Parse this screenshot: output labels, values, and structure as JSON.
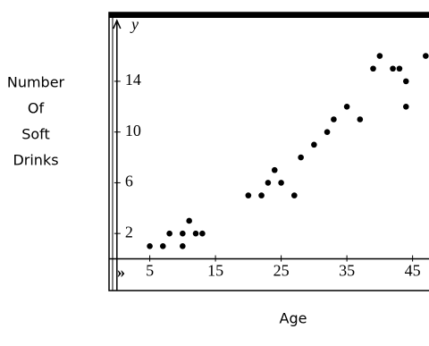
{
  "chart_data": {
    "type": "scatter",
    "ylabel": [
      "Number",
      "Of",
      "Soft",
      "Drinks"
    ],
    "xlabel": "Age",
    "y_axis_name": "y",
    "x": [
      5,
      7,
      8,
      10,
      10,
      11,
      12,
      13,
      20,
      22,
      23,
      24,
      25,
      27,
      28,
      30,
      32,
      33,
      35,
      37,
      39,
      40,
      42,
      43,
      44,
      44,
      47
    ],
    "values": [
      1,
      1,
      2,
      1,
      2,
      3,
      2,
      2,
      5,
      5,
      6,
      7,
      6,
      5,
      8,
      9,
      10,
      11,
      12,
      11,
      15,
      16,
      15,
      15,
      14,
      12,
      16
    ],
    "color": "#000000",
    "xlim": [
      -1.2,
      47.5
    ],
    "ylim": [
      -2.5,
      19
    ],
    "xticks": [
      5,
      15,
      25,
      35,
      45
    ],
    "yticks": [
      2,
      6,
      10,
      14
    ]
  }
}
